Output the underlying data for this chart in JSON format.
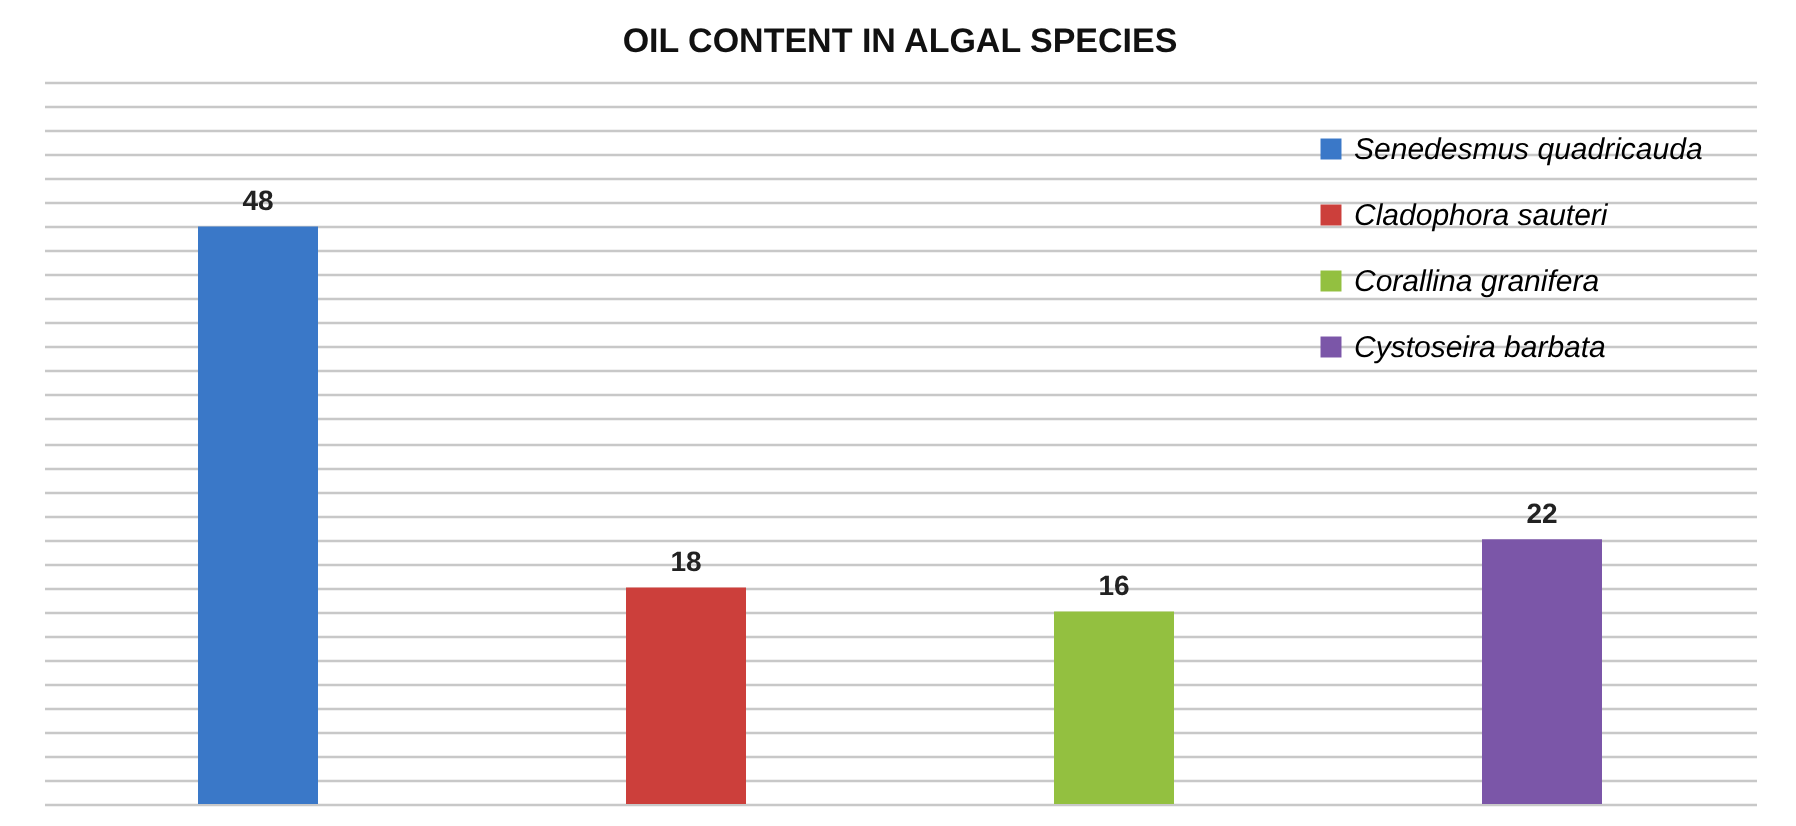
{
  "chart_data": {
    "type": "bar",
    "title": "OIL CONTENT IN ALGAL SPECIES",
    "categories": [
      null,
      null,
      null,
      null
    ],
    "stacked": true,
    "series": [
      {
        "name": "Senedesmus quadricauda",
        "color": "#3a78c8",
        "values": [
          48,
          null,
          null,
          null
        ]
      },
      {
        "name": "Cladophora sauteri",
        "color": "#cc3f3b",
        "values": [
          null,
          18,
          null,
          null
        ]
      },
      {
        "name": "Corallina granifera",
        "color": "#93c040",
        "values": [
          null,
          null,
          16,
          null
        ]
      },
      {
        "name": "Cystoseira barbata",
        "color": "#7b56a8",
        "values": [
          null,
          null,
          null,
          22
        ]
      }
    ],
    "ylim": [
      0,
      60
    ],
    "yticks": [
      {
        "value": 0,
        "label": null
      },
      {
        "value": 2,
        "label": null
      },
      {
        "value": 4,
        "label": null
      },
      {
        "value": 6,
        "label": null
      },
      {
        "value": 8,
        "label": null
      },
      {
        "value": 10,
        "label": null
      },
      {
        "value": 12,
        "label": null
      },
      {
        "value": 14,
        "label": null
      },
      {
        "value": 16,
        "label": null
      },
      {
        "value": 18,
        "label": null
      },
      {
        "value": 20,
        "label": null
      },
      {
        "value": 22,
        "label": null
      },
      {
        "value": 24,
        "label": null
      },
      {
        "value": 26,
        "label": null
      },
      {
        "value": 28,
        "label": null
      },
      {
        "value": 30,
        "label": null
      },
      {
        "value": 32,
        "label": null
      },
      {
        "value": 34,
        "label": null
      },
      {
        "value": 36,
        "label": null
      },
      {
        "value": 38,
        "label": null
      },
      {
        "value": 40,
        "label": null
      },
      {
        "value": 42,
        "label": null
      },
      {
        "value": 44,
        "label": null
      },
      {
        "value": 46,
        "label": null
      },
      {
        "value": 48,
        "label": null
      },
      {
        "value": 50,
        "label": null
      },
      {
        "value": 52,
        "label": null
      },
      {
        "value": 54,
        "label": null
      },
      {
        "value": 56,
        "label": null
      },
      {
        "value": 58,
        "label": null
      },
      {
        "value": 60,
        "label": null
      }
    ],
    "grid": "y",
    "legend": "top right",
    "data_labels": true
  }
}
